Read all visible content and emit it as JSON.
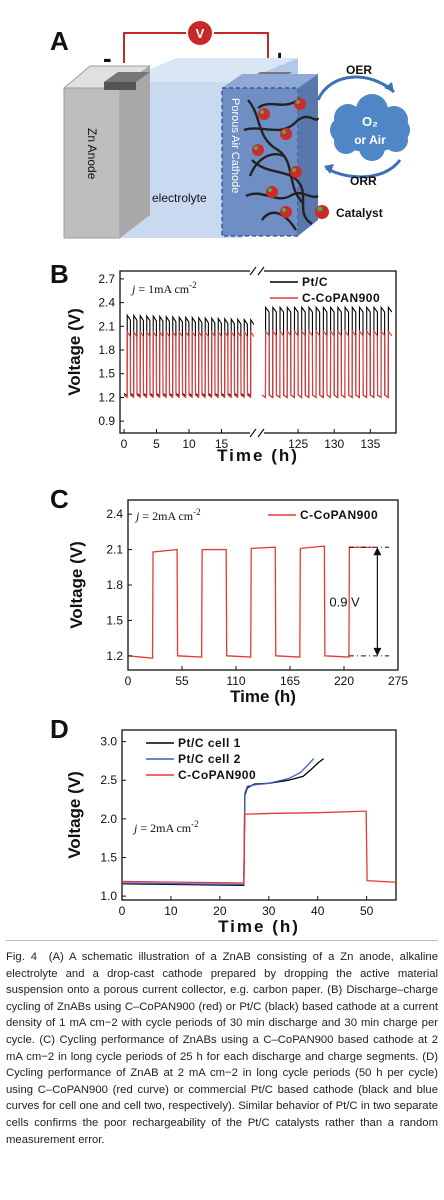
{
  "panelA": {
    "letter": "A",
    "voltmeter": "V",
    "minus": "-",
    "plus": "+",
    "zn_anode": "Zn Anode",
    "electrolyte": "electrolyte",
    "cathode": "Porous Air Cathode",
    "oer": "OER",
    "orr": "ORR",
    "cloud_line1": "O₂",
    "cloud_line2": "or Air",
    "catalyst": "Catalyst",
    "colors": {
      "wire": "#c62828",
      "anode": "#bdbdbd",
      "electrolyte": "#c9daf0",
      "cathode": "#6f8fc4",
      "cloud": "#4f86c6",
      "catalyst": "#cc2b2b"
    }
  },
  "chart_data": [
    {
      "panel": "B",
      "type": "line",
      "xlabel": "Time (h)",
      "ylabel": "Voltage (V)",
      "annotation_j": "j",
      "annotation_rest": " = 1mA cm",
      "annotation_sup": "-2",
      "broken_axis": true,
      "x_tick_labels": [
        "0",
        "5",
        "10",
        "15",
        "125",
        "130",
        "135"
      ],
      "y_ticks": [
        0.9,
        1.2,
        1.5,
        1.8,
        2.1,
        2.4,
        2.7
      ],
      "ylim": [
        0.75,
        2.8
      ],
      "segments": [
        {
          "xlim": [
            0,
            20
          ],
          "cycles_per_h": 1
        },
        {
          "xlim": [
            120,
            138
          ],
          "cycles_per_h": 1
        }
      ],
      "series": [
        {
          "name": "Pt/C",
          "color": "#000000",
          "charge_V_start": [
            2.2,
            2.3
          ],
          "discharge_V_start": [
            1.24,
            1.22
          ]
        },
        {
          "name": "C-CoPAN900",
          "color": "#e53935",
          "charge_V_start": [
            1.99,
            2.0
          ],
          "discharge_V_start": [
            1.22,
            1.22
          ]
        }
      ]
    },
    {
      "panel": "C",
      "type": "line",
      "xlabel": "Time (h)",
      "ylabel": "Voltage (V)",
      "annotation_j": "j",
      "annotation_rest": " = 2mA cm",
      "annotation_sup": "-2",
      "xticks": [
        0,
        55,
        110,
        165,
        220,
        275
      ],
      "xlim": [
        0,
        275
      ],
      "y_ticks": [
        1.2,
        1.5,
        1.8,
        2.1,
        2.4
      ],
      "ylim": [
        1.08,
        2.52
      ],
      "gap_label": "0.9 V",
      "series": [
        {
          "name": "C-CoPAN900",
          "color": "#e53935",
          "x": [
            0,
            25,
            25.5,
            50,
            50.5,
            75,
            75.5,
            100,
            100.5,
            125,
            125.5,
            150,
            150.5,
            175,
            175.5,
            200,
            200.5,
            225,
            225.5,
            250
          ],
          "y": [
            1.2,
            1.18,
            2.08,
            2.1,
            1.2,
            1.19,
            2.1,
            2.1,
            1.2,
            1.19,
            2.11,
            2.12,
            1.2,
            1.19,
            2.11,
            2.13,
            1.2,
            1.19,
            2.12,
            2.12
          ]
        }
      ]
    },
    {
      "panel": "D",
      "type": "line",
      "xlabel": "Time (h)",
      "ylabel": "Voltage (V)",
      "annotation_j": "j",
      "annotation_rest": " = 2mA cm",
      "annotation_sup": "-2",
      "xticks": [
        0,
        10,
        20,
        30,
        40,
        50
      ],
      "xlim": [
        0,
        56
      ],
      "y_ticks": [
        1.0,
        1.5,
        2.0,
        2.5,
        3.0
      ],
      "ylim": [
        0.95,
        3.15
      ],
      "series": [
        {
          "name": "Pt/C cell 1",
          "color": "#000000",
          "x": [
            0,
            24.9,
            25.1,
            25.6,
            27,
            30,
            34,
            37,
            38.5,
            40,
            41.2
          ],
          "y": [
            1.16,
            1.14,
            2.3,
            2.4,
            2.45,
            2.46,
            2.5,
            2.55,
            2.63,
            2.72,
            2.78
          ]
        },
        {
          "name": "Pt/C cell 2",
          "color": "#3f5fbf",
          "x": [
            0,
            24.9,
            25.1,
            25.6,
            27,
            30,
            34,
            36.5,
            38,
            39.2
          ],
          "y": [
            1.17,
            1.15,
            2.33,
            2.42,
            2.44,
            2.46,
            2.52,
            2.6,
            2.7,
            2.78
          ]
        },
        {
          "name": "C-CoPAN900",
          "color": "#e53935",
          "x": [
            0,
            24.9,
            25.1,
            30,
            40,
            49.9,
            50.1,
            56
          ],
          "y": [
            1.19,
            1.17,
            2.06,
            2.07,
            2.08,
            2.1,
            1.2,
            1.18
          ]
        }
      ]
    }
  ],
  "caption": {
    "lead": "Fig. 4",
    "text": "(A) A schematic illustration of a ZnAB consisting of a Zn anode, alkaline electrolyte and a drop-cast cathode prepared by dropping the active material suspension onto a porous current collector, e.g. carbon paper. (B) Discharge–charge cycling of ZnABs using C–CoPAN900 (red) or Pt/C (black) based cathode at a current density of 1 mA cm−2 with cycle periods of 30 min discharge and 30 min charge per cycle. (C) Cycling performance of ZnABs using a C–CoPAN900 based cathode at 2 mA cm−2 in long cycle periods of 25 h for each discharge and charge segments. (D) Cycling performance of ZnAB at 2 mA cm−2 in long cycle periods (50 h per cycle) using C–CoPAN900 (red curve) or commercial Pt/C based cathode (black and blue curves for cell one and cell two, respectively). Similar behavior of Pt/C in two separate cells confirms the poor rechargeability of the Pt/C catalysts rather than a random measurement error."
  }
}
